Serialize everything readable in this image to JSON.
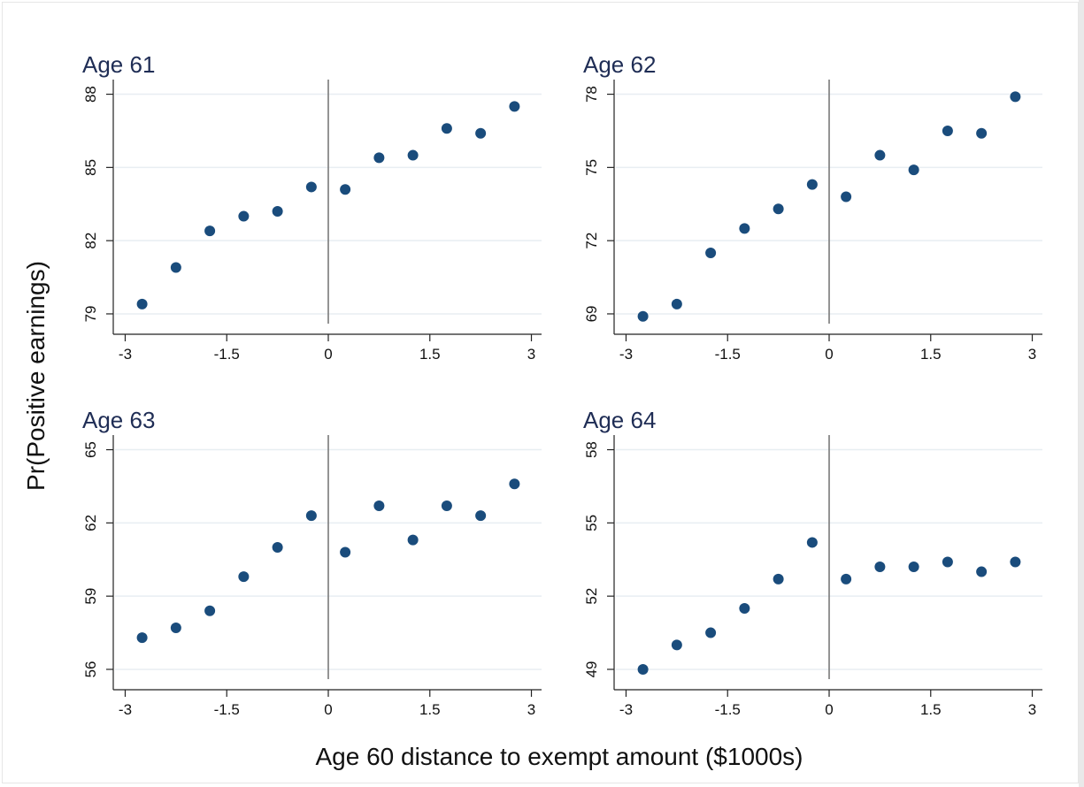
{
  "figure": {
    "ylabel": "Pr(Positive earnings)",
    "xlabel": "Age 60 distance to exempt amount ($1000s)"
  },
  "chart_data": [
    {
      "type": "scatter",
      "title": "Age 61",
      "xticks": [
        -3,
        -1.5,
        0,
        1.5,
        3
      ],
      "xtick_labels": [
        "-3",
        "-1.5",
        "0",
        "1.5",
        "3"
      ],
      "yticks": [
        79,
        82,
        85,
        88
      ],
      "ylim": [
        78.6,
        88.6
      ],
      "xlim": [
        -3.15,
        3.15
      ],
      "reference_line_x": 0,
      "grid": true,
      "x": [
        -2.75,
        -2.25,
        -1.75,
        -1.25,
        -0.75,
        -0.25,
        0.25,
        0.75,
        1.25,
        1.75,
        2.25,
        2.75
      ],
      "y": [
        79.4,
        80.9,
        82.4,
        83.0,
        83.2,
        84.2,
        84.1,
        85.4,
        85.5,
        86.6,
        86.4,
        87.5
      ]
    },
    {
      "type": "scatter",
      "title": "Age 62",
      "xticks": [
        -3,
        -1.5,
        0,
        1.5,
        3
      ],
      "xtick_labels": [
        "-3",
        "-1.5",
        "0",
        "1.5",
        "3"
      ],
      "yticks": [
        69,
        72,
        75,
        78
      ],
      "ylim": [
        68.6,
        78.6
      ],
      "xlim": [
        -3.15,
        3.15
      ],
      "reference_line_x": 0,
      "grid": true,
      "x": [
        -2.75,
        -2.25,
        -1.75,
        -1.25,
        -0.75,
        -0.25,
        0.25,
        0.75,
        1.25,
        1.75,
        2.25,
        2.75
      ],
      "y": [
        68.9,
        69.4,
        71.5,
        72.5,
        73.3,
        74.3,
        73.8,
        75.5,
        74.9,
        76.5,
        76.4,
        77.9
      ]
    },
    {
      "type": "scatter",
      "title": "Age 63",
      "xticks": [
        -3,
        -1.5,
        0,
        1.5,
        3
      ],
      "xtick_labels": [
        "-3",
        "-1.5",
        "0",
        "1.5",
        "3"
      ],
      "yticks": [
        56,
        59,
        62,
        65
      ],
      "ylim": [
        55.6,
        65.6
      ],
      "xlim": [
        -3.15,
        3.15
      ],
      "reference_line_x": 0,
      "grid": true,
      "x": [
        -2.75,
        -2.25,
        -1.75,
        -1.25,
        -0.75,
        -0.25,
        0.25,
        0.75,
        1.25,
        1.75,
        2.25,
        2.75
      ],
      "y": [
        57.3,
        57.7,
        58.4,
        59.8,
        61.0,
        62.3,
        60.8,
        62.7,
        61.3,
        62.7,
        62.3,
        63.6
      ]
    },
    {
      "type": "scatter",
      "title": "Age 64",
      "xticks": [
        -3,
        -1.5,
        0,
        1.5,
        3
      ],
      "xtick_labels": [
        "-3",
        "-1.5",
        "0",
        "1.5",
        "3"
      ],
      "yticks": [
        49,
        52,
        55,
        58
      ],
      "ylim": [
        48.6,
        58.6
      ],
      "xlim": [
        -3.15,
        3.15
      ],
      "reference_line_x": 0,
      "grid": true,
      "x": [
        -2.75,
        -2.25,
        -1.75,
        -1.25,
        -0.75,
        -0.25,
        0.25,
        0.75,
        1.25,
        1.75,
        2.25,
        2.75
      ],
      "y": [
        49.0,
        50.0,
        50.5,
        51.5,
        52.7,
        54.2,
        52.7,
        53.2,
        53.2,
        53.4,
        53.0,
        53.4
      ]
    }
  ]
}
